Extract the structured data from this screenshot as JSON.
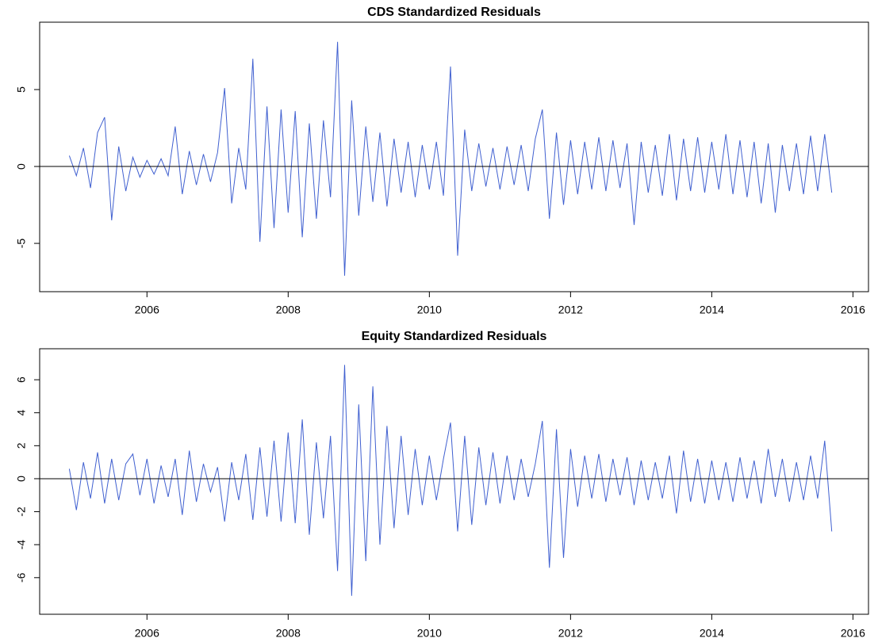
{
  "chart_data": [
    {
      "type": "line",
      "title": "CDS Standardized Residuals",
      "color": "#4060d0",
      "x": [
        2004.9,
        2005.0,
        2005.1,
        2005.2,
        2005.3,
        2005.4,
        2005.5,
        2005.6,
        2005.7,
        2005.8,
        2005.9,
        2006.0,
        2006.1,
        2006.2,
        2006.3,
        2006.4,
        2006.5,
        2006.6,
        2006.7,
        2006.8,
        2006.9,
        2007.0,
        2007.1,
        2007.2,
        2007.3,
        2007.4,
        2007.5,
        2007.6,
        2007.7,
        2007.8,
        2007.9,
        2008.0,
        2008.1,
        2008.2,
        2008.3,
        2008.4,
        2008.5,
        2008.6,
        2008.7,
        2008.8,
        2008.9,
        2009.0,
        2009.1,
        2009.2,
        2009.3,
        2009.4,
        2009.5,
        2009.6,
        2009.7,
        2009.8,
        2009.9,
        2010.0,
        2010.1,
        2010.2,
        2010.3,
        2010.4,
        2010.5,
        2010.6,
        2010.7,
        2010.8,
        2010.9,
        2011.0,
        2011.1,
        2011.2,
        2011.3,
        2011.4,
        2011.5,
        2011.6,
        2011.7,
        2011.8,
        2011.9,
        2012.0,
        2012.1,
        2012.2,
        2012.3,
        2012.4,
        2012.5,
        2012.6,
        2012.7,
        2012.8,
        2012.9,
        2013.0,
        2013.1,
        2013.2,
        2013.3,
        2013.4,
        2013.5,
        2013.6,
        2013.7,
        2013.8,
        2013.9,
        2014.0,
        2014.1,
        2014.2,
        2014.3,
        2014.4,
        2014.5,
        2014.6,
        2014.7,
        2014.8,
        2014.9,
        2015.0,
        2015.1,
        2015.2,
        2015.3,
        2015.4,
        2015.5,
        2015.6,
        2015.7
      ],
      "values": [
        0.7,
        -0.6,
        1.2,
        -1.4,
        2.2,
        3.2,
        -3.5,
        1.3,
        -1.6,
        0.6,
        -0.7,
        0.4,
        -0.5,
        0.5,
        -0.6,
        2.6,
        -1.8,
        1.0,
        -1.2,
        0.8,
        -1.0,
        0.9,
        5.1,
        -2.4,
        1.2,
        -1.5,
        7.0,
        -4.9,
        3.9,
        -4.0,
        3.7,
        -3.0,
        3.6,
        -4.6,
        2.8,
        -3.4,
        3.0,
        -2.0,
        8.1,
        -7.1,
        4.3,
        -3.2,
        2.6,
        -2.3,
        2.2,
        -2.6,
        1.8,
        -1.7,
        1.6,
        -2.0,
        1.4,
        -1.5,
        1.6,
        -1.9,
        6.5,
        -5.8,
        2.4,
        -1.6,
        1.5,
        -1.3,
        1.2,
        -1.5,
        1.3,
        -1.2,
        1.4,
        -1.6,
        1.8,
        3.7,
        -3.4,
        2.2,
        -2.5,
        1.7,
        -1.8,
        1.6,
        -1.5,
        1.9,
        -1.6,
        1.7,
        -1.4,
        1.5,
        -3.8,
        1.6,
        -1.7,
        1.4,
        -1.9,
        2.1,
        -2.2,
        1.8,
        -1.6,
        1.9,
        -1.7,
        1.6,
        -1.5,
        2.1,
        -1.8,
        1.7,
        -2.0,
        1.6,
        -2.4,
        1.5,
        -3.0,
        1.4,
        -1.6,
        1.5,
        -1.8,
        2.0,
        -1.6,
        2.1,
        -1.7
      ],
      "xlim": [
        2004.48,
        2016.22
      ],
      "xticks": [
        2006,
        2008,
        2010,
        2012,
        2014,
        2016
      ],
      "ylim": [
        -8.14,
        9.38
      ],
      "yticks": [
        -5,
        0,
        5
      ],
      "hline": 0
    },
    {
      "type": "line",
      "title": "Equity Standardized Residuals",
      "color": "#4060d0",
      "x": [
        2004.9,
        2005.0,
        2005.1,
        2005.2,
        2005.3,
        2005.4,
        2005.5,
        2005.6,
        2005.7,
        2005.8,
        2005.9,
        2006.0,
        2006.1,
        2006.2,
        2006.3,
        2006.4,
        2006.5,
        2006.6,
        2006.7,
        2006.8,
        2006.9,
        2007.0,
        2007.1,
        2007.2,
        2007.3,
        2007.4,
        2007.5,
        2007.6,
        2007.7,
        2007.8,
        2007.9,
        2008.0,
        2008.1,
        2008.2,
        2008.3,
        2008.4,
        2008.5,
        2008.6,
        2008.7,
        2008.8,
        2008.9,
        2009.0,
        2009.1,
        2009.2,
        2009.3,
        2009.4,
        2009.5,
        2009.6,
        2009.7,
        2009.8,
        2009.9,
        2010.0,
        2010.1,
        2010.2,
        2010.3,
        2010.4,
        2010.5,
        2010.6,
        2010.7,
        2010.8,
        2010.9,
        2011.0,
        2011.1,
        2011.2,
        2011.3,
        2011.4,
        2011.5,
        2011.6,
        2011.7,
        2011.8,
        2011.9,
        2012.0,
        2012.1,
        2012.2,
        2012.3,
        2012.4,
        2012.5,
        2012.6,
        2012.7,
        2012.8,
        2012.9,
        2013.0,
        2013.1,
        2013.2,
        2013.3,
        2013.4,
        2013.5,
        2013.6,
        2013.7,
        2013.8,
        2013.9,
        2014.0,
        2014.1,
        2014.2,
        2014.3,
        2014.4,
        2014.5,
        2014.6,
        2014.7,
        2014.8,
        2014.9,
        2015.0,
        2015.1,
        2015.2,
        2015.3,
        2015.4,
        2015.5,
        2015.6,
        2015.7
      ],
      "values": [
        0.6,
        -1.9,
        1.0,
        -1.2,
        1.6,
        -1.5,
        1.2,
        -1.3,
        0.9,
        1.5,
        -1.0,
        1.2,
        -1.5,
        0.8,
        -1.1,
        1.2,
        -2.2,
        1.7,
        -1.4,
        0.9,
        -0.8,
        0.7,
        -2.6,
        1.0,
        -1.3,
        1.5,
        -2.5,
        1.9,
        -2.3,
        2.3,
        -2.6,
        2.8,
        -2.7,
        3.6,
        -3.4,
        2.2,
        -2.4,
        2.6,
        -5.6,
        6.9,
        -7.1,
        4.5,
        -5.0,
        5.6,
        -4.0,
        3.2,
        -3.0,
        2.6,
        -2.2,
        1.8,
        -1.6,
        1.4,
        -1.3,
        1.2,
        3.4,
        -3.2,
        2.6,
        -2.8,
        1.9,
        -1.6,
        1.6,
        -1.5,
        1.4,
        -1.3,
        1.2,
        -1.1,
        0.9,
        3.5,
        -5.4,
        3.0,
        -4.8,
        1.8,
        -1.7,
        1.4,
        -1.2,
        1.5,
        -1.4,
        1.2,
        -1.0,
        1.3,
        -1.6,
        1.1,
        -1.3,
        1.0,
        -1.2,
        1.4,
        -2.1,
        1.7,
        -1.4,
        1.2,
        -1.5,
        1.1,
        -1.3,
        1.0,
        -1.4,
        1.3,
        -1.2,
        1.1,
        -1.5,
        1.8,
        -1.1,
        1.2,
        -1.4,
        1.0,
        -1.3,
        1.4,
        -1.2,
        2.3,
        -3.2
      ],
      "xlim": [
        2004.48,
        2016.22
      ],
      "xticks": [
        2006,
        2008,
        2010,
        2012,
        2014,
        2016
      ],
      "ylim": [
        -8.22,
        7.88
      ],
      "yticks": [
        -6,
        -4,
        -2,
        0,
        2,
        4,
        6
      ],
      "hline": 0
    }
  ]
}
